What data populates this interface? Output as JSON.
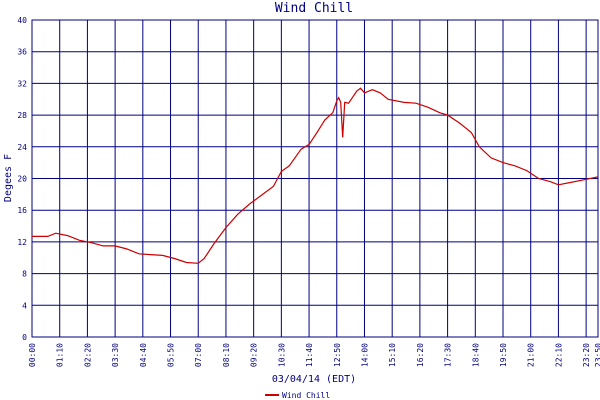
{
  "chart_data": {
    "type": "line",
    "title": "Wind Chill",
    "xlabel": "03/04/14 (EDT)",
    "ylabel": "Degees F",
    "x": [
      "00:00",
      "00:40",
      "01:00",
      "01:30",
      "02:00",
      "02:30",
      "03:00",
      "03:30",
      "04:00",
      "04:30",
      "05:00",
      "05:30",
      "06:00",
      "06:30",
      "07:00",
      "07:15",
      "07:40",
      "08:10",
      "08:40",
      "09:10",
      "09:40",
      "10:10",
      "10:30",
      "10:50",
      "11:20",
      "11:40",
      "12:00",
      "12:20",
      "12:40",
      "12:50",
      "12:55",
      "13:00",
      "13:05",
      "13:10",
      "13:20",
      "13:40",
      "13:50",
      "14:00",
      "14:20",
      "14:40",
      "15:00",
      "15:40",
      "16:10",
      "16:40",
      "17:10",
      "17:30",
      "18:00",
      "18:30",
      "18:50",
      "19:20",
      "19:50",
      "20:20",
      "20:50",
      "21:20",
      "21:50",
      "22:10",
      "22:40",
      "23:20",
      "23:50"
    ],
    "series": [
      {
        "name": "Wind Chill",
        "color": "#cc0000",
        "values": [
          12.7,
          12.7,
          13.1,
          12.8,
          12.2,
          11.9,
          11.5,
          11.5,
          11.1,
          10.5,
          10.4,
          10.3,
          9.9,
          9.4,
          9.3,
          9.9,
          11.8,
          13.8,
          15.5,
          16.8,
          17.9,
          19.0,
          20.9,
          21.6,
          23.7,
          24.3,
          25.8,
          27.4,
          28.3,
          29.8,
          30.2,
          29.6,
          25.2,
          29.6,
          29.5,
          31.0,
          31.4,
          30.8,
          31.2,
          30.8,
          30.0,
          29.6,
          29.5,
          29.0,
          28.3,
          28.0,
          27.0,
          25.8,
          24.0,
          22.6,
          22.0,
          21.6,
          21.0,
          20.0,
          19.6,
          19.2,
          19.5,
          19.9,
          20.2
        ]
      }
    ],
    "xlim": [
      "00:00",
      "23:50"
    ],
    "xticks": [
      "00:00",
      "01:10",
      "02:20",
      "03:30",
      "04:40",
      "05:50",
      "07:00",
      "08:10",
      "09:20",
      "10:30",
      "11:40",
      "12:50",
      "14:00",
      "15:10",
      "16:20",
      "17:30",
      "18:40",
      "19:50",
      "21:00",
      "22:10",
      "23:20",
      "23:50"
    ],
    "ylim": [
      0,
      40
    ],
    "yticks": [
      0,
      4,
      8,
      12,
      16,
      20,
      24,
      28,
      32,
      36,
      40
    ],
    "grid": true,
    "grid_color": "#000080"
  }
}
